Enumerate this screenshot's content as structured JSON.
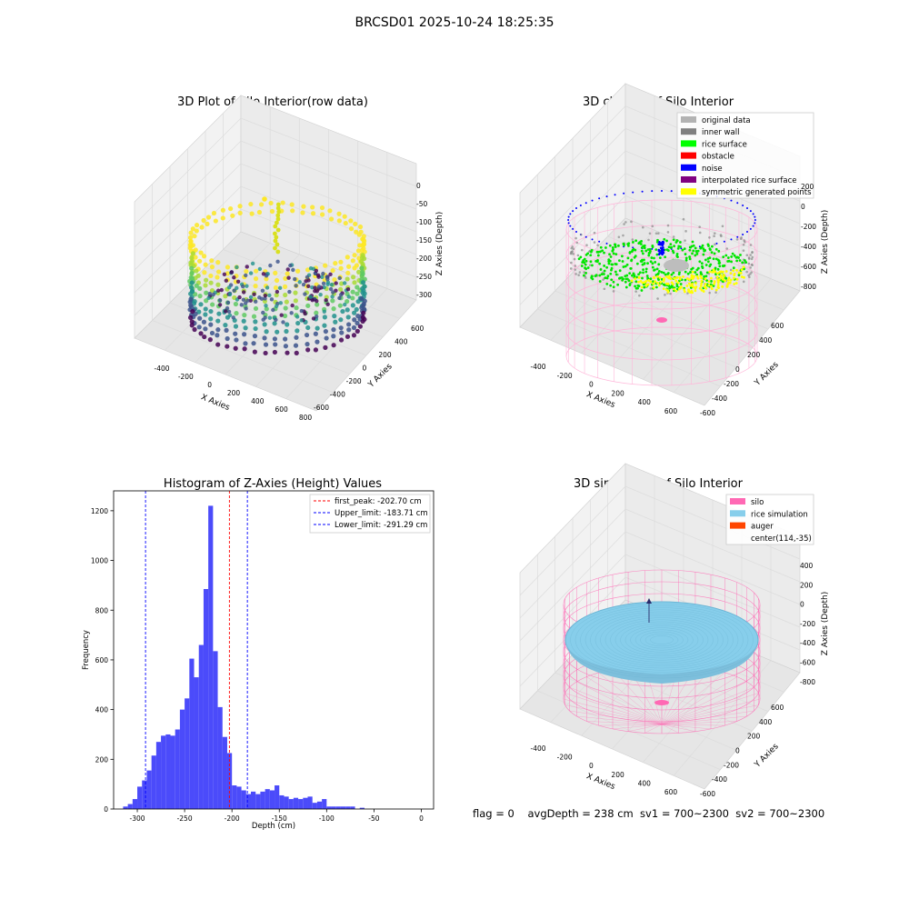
{
  "suptitle": "BRCSD01 2025-10-24 18:25:35",
  "footer_text": "flag = 0    avgDepth = 238 cm  sv1 = 700~2300  sv2 = 700~2300",
  "chart_data": [
    {
      "type": "scatter",
      "projection": "3d",
      "title": "3D Plot of Silo Interior(row data)",
      "xlabel": "X Axies",
      "ylabel": "Y Axies",
      "zlabel": "Z Axies (Depth)",
      "x_ticks": [
        -400,
        -200,
        0,
        200,
        400,
        600,
        800
      ],
      "y_ticks": [
        -600,
        -400,
        -200,
        0,
        200,
        400,
        600
      ],
      "z_ticks": [
        -300,
        -250,
        -200,
        -150,
        -100,
        -50,
        0
      ],
      "colormap": "viridis",
      "grid": true,
      "legend": "none"
    },
    {
      "type": "scatter",
      "projection": "3d",
      "title": "3D classify of Silo Interior",
      "xlabel": "X Axies",
      "ylabel": "Y Axies",
      "zlabel": "Z Axies (Depth)",
      "x_ticks": [
        -400,
        -200,
        0,
        200,
        400,
        600
      ],
      "y_ticks": [
        -600,
        -400,
        -200,
        0,
        200,
        400,
        600
      ],
      "z_ticks": [
        -800,
        -600,
        -400,
        -200,
        0,
        200
      ],
      "legend_position": "top-right",
      "legend": [
        {
          "label": "original data",
          "color": "#b3b3b3"
        },
        {
          "label": "inner wall",
          "color": "#808080"
        },
        {
          "label": "rice surface",
          "color": "#00ff00"
        },
        {
          "label": "obstacle",
          "color": "#ff0000"
        },
        {
          "label": "noise",
          "color": "#0000ff"
        },
        {
          "label": "interpolated rice surface",
          "color": "#800080"
        },
        {
          "label": "symmetric generated points",
          "color": "#ffff00"
        }
      ],
      "grid": true
    },
    {
      "type": "bar",
      "title": "Histogram of Z-Axies (Height) Values",
      "xlabel": "Depth (cm)",
      "ylabel": "Frequency",
      "xlim": [
        -325,
        13
      ],
      "ylim": [
        0,
        1280
      ],
      "x_ticks": [
        -300,
        -250,
        -200,
        -150,
        -100,
        -50,
        0
      ],
      "y_ticks": [
        0,
        200,
        400,
        600,
        800,
        1000,
        1200
      ],
      "bar_color": "#4b4bfa",
      "bin_start": -315,
      "bin_width": 5,
      "values": [
        10,
        20,
        40,
        90,
        115,
        155,
        215,
        270,
        295,
        300,
        295,
        320,
        400,
        445,
        605,
        530,
        660,
        885,
        1220,
        635,
        410,
        290,
        225,
        95,
        90,
        75,
        60,
        70,
        60,
        70,
        80,
        75,
        95,
        55,
        50,
        40,
        45,
        40,
        45,
        50,
        25,
        30,
        40,
        10,
        10,
        10,
        10,
        10,
        10,
        0,
        5
      ],
      "vlines": [
        {
          "label": "first_peak: -202.70 cm",
          "x": -202.7,
          "color": "#ff0000"
        },
        {
          "label": "Upper_limit: -183.71 cm",
          "x": -183.71,
          "color": "#0000ff"
        },
        {
          "label": "Lower_limit: -291.29 cm",
          "x": -291.29,
          "color": "#0000ff"
        }
      ],
      "legend_position": "top-right",
      "grid": false
    },
    {
      "type": "scatter",
      "projection": "3d",
      "title": "3D simulation of Silo Interior",
      "xlabel": "X Axies",
      "ylabel": "Y Axies",
      "zlabel": "Z Axies (Depth)",
      "x_ticks": [
        -400,
        -200,
        0,
        200,
        400,
        600
      ],
      "y_ticks": [
        -600,
        -400,
        -200,
        0,
        200,
        400,
        600
      ],
      "z_ticks": [
        -800,
        -600,
        -400,
        -200,
        0,
        200,
        400
      ],
      "legend_position": "top-right",
      "legend": [
        {
          "label": "silo",
          "color": "#ff69b4",
          "marker": "patch"
        },
        {
          "label": "rice simulation",
          "color": "#87ceeb",
          "marker": "patch"
        },
        {
          "label": "auger",
          "color": "#ff4500",
          "marker": "patch"
        },
        {
          "label": "center(114,-35)",
          "color": "",
          "marker": "none"
        }
      ],
      "grid": true
    }
  ]
}
